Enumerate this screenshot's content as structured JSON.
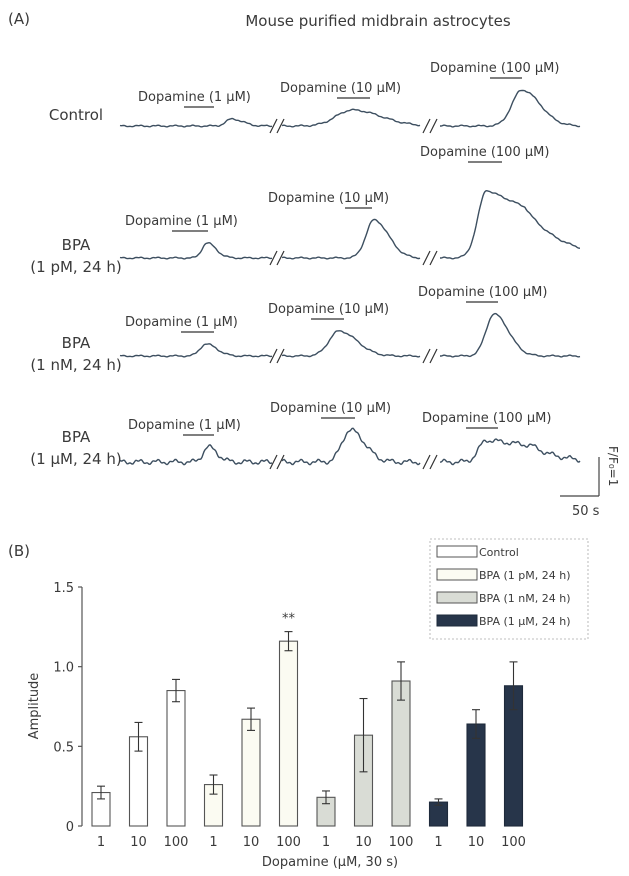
{
  "panel_a": {
    "label": "(A)",
    "title": "Mouse purified midbrain astrocytes",
    "scale_y": "F/F₀=1",
    "scale_x": "50 s",
    "rows": [
      {
        "label": [
          "Control"
        ],
        "stim": [
          "Dopamine (1 μM)",
          "Dopamine (10 μM)",
          "Dopamine (100 μM)"
        ]
      },
      {
        "label": [
          "BPA",
          "(1 pM, 24 h)"
        ],
        "stim": [
          "Dopamine (1 μM)",
          "Dopamine (10 μM)",
          "Dopamine (100 μM)"
        ]
      },
      {
        "label": [
          "BPA",
          "(1 nM, 24 h)"
        ],
        "stim": [
          "Dopamine (1 μM)",
          "Dopamine (10 μM)",
          "Dopamine (100 μM)"
        ]
      },
      {
        "label": [
          "BPA",
          "(1 μM, 24 h)"
        ],
        "stim": [
          "Dopamine (1 μM)",
          "Dopamine (10 μM)",
          "Dopamine (100 μM)"
        ]
      }
    ]
  },
  "panel_b": {
    "label": "(B)"
  },
  "chart_data": {
    "type": "bar",
    "title": "",
    "xlabel": "Dopamine (μM, 30 s)",
    "ylabel": "Amplitude",
    "ylim": [
      0,
      1.5
    ],
    "yticks": [
      "0",
      "0.5",
      "1.0",
      "1.5"
    ],
    "categories": [
      "1",
      "10",
      "100"
    ],
    "legend_position": "top-right",
    "significance": {
      "series": "BPA (1 pM, 24 h)",
      "category": "100",
      "label": "**"
    },
    "series": [
      {
        "name": "Control",
        "values": [
          0.21,
          0.56,
          0.85
        ],
        "errors": [
          0.04,
          0.09,
          0.07
        ],
        "color": "#ffffff"
      },
      {
        "name": "BPA (1 pM, 24 h)",
        "values": [
          0.26,
          0.67,
          1.16
        ],
        "errors": [
          0.06,
          0.07,
          0.06
        ],
        "color": "#fbfbf2"
      },
      {
        "name": "BPA (1 nM, 24 h)",
        "values": [
          0.18,
          0.57,
          0.91
        ],
        "errors": [
          0.04,
          0.23,
          0.12
        ],
        "color": "#d9dcd5"
      },
      {
        "name": "BPA (1 μM, 24 h)",
        "values": [
          0.15,
          0.64,
          0.88
        ],
        "errors": [
          0.02,
          0.09,
          0.15
        ],
        "color": "#27354a"
      }
    ]
  }
}
